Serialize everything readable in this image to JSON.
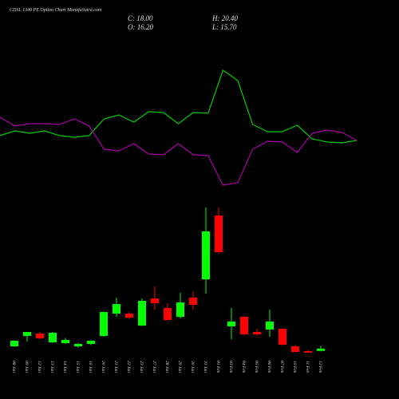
{
  "chart_data": {
    "type": "candlestick",
    "title": "CDSL 1340 PE Option  Chart MunafaSutra.com",
    "stats": [
      "C: 18.00",
      "H: 20.40",
      "O: 16.20",
      "L: 15.70"
    ],
    "categories": [
      "08 Jan",
      "09 Jan",
      "12 Jan",
      "13 Jan",
      "14 Jan",
      "15 Jan",
      "16 Jan",
      "20 Jan",
      "21 Jan",
      "22 Jan",
      "23 Jan",
      "27 Jan",
      "28 Jan",
      "29 Jan",
      "30 Jan",
      "31 Jan",
      "01 Feb",
      "03 Feb",
      "04 Feb",
      "05 Feb",
      "06 Feb",
      "07 Feb",
      "10 Feb",
      "11 Feb",
      "12 Feb"
    ],
    "open": [
      20,
      28.7,
      30.7,
      23.3,
      22.7,
      20,
      22,
      28.7,
      47.3,
      47.3,
      37.3,
      60,
      52,
      44.7,
      60.7,
      76,
      129.3,
      36.7,
      44.7,
      32,
      34,
      34.7,
      20,
      16,
      16.2
    ],
    "high": [
      25,
      32,
      32,
      32,
      27,
      23,
      25,
      49,
      60.7,
      48.7,
      60,
      70,
      56,
      64.7,
      66,
      136,
      136,
      52,
      45.3,
      34.7,
      50.7,
      35,
      21,
      17,
      20.4
    ],
    "low": [
      19.5,
      24,
      26,
      23,
      22,
      19,
      21,
      28,
      44.7,
      42.7,
      37,
      50.7,
      41.3,
      43.3,
      50.7,
      64,
      97.3,
      26,
      29.3,
      28.7,
      28,
      21,
      15,
      14.3,
      15.7
    ],
    "close": [
      24.7,
      32,
      26.7,
      31.3,
      25.3,
      22,
      24.7,
      48.7,
      55.3,
      44,
      58,
      56,
      42,
      56.7,
      54.7,
      116,
      98.7,
      40.7,
      30,
      30,
      40.7,
      21.3,
      15.3,
      14.7,
      18
    ],
    "up_color": "#00ff00",
    "down_color": "#ff0000",
    "ylim": [
      0,
      160
    ],
    "lines": {
      "ylim": [
        0,
        100
      ],
      "series": [
        {
          "color": "#00cc00",
          "values": [
            43.8,
            47.5,
            45.6,
            47.5,
            43.8,
            42.5,
            43.8,
            56.9,
            60,
            54.4,
            62.5,
            61.9,
            53.1,
            61.9,
            61.3,
            95,
            86.9,
            52.5,
            46.9,
            46.9,
            51.9,
            41.3,
            38.8,
            38.1,
            40
          ]
        },
        {
          "color": "#aa00aa",
          "values": [
            58.1,
            51.3,
            53.1,
            53.1,
            52.5,
            56.9,
            51.3,
            33.1,
            31.9,
            37.5,
            29.4,
            28.8,
            37.5,
            28.8,
            28.1,
            5,
            6.9,
            33.1,
            39.4,
            38.8,
            30.6,
            45.6,
            48.1,
            46.3,
            40
          ]
        }
      ]
    }
  }
}
